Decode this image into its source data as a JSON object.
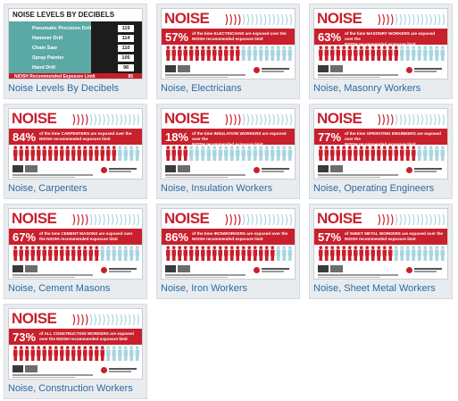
{
  "cards": [
    {
      "caption": "Noise Levels By Decibels",
      "type": "decibels"
    },
    {
      "caption": "Noise, Electricians",
      "pct": "57%",
      "line1": "of the time ELECTRICIANS are exposed over the",
      "line2": "NIOSH recommended exposure limit",
      "filled": 57
    },
    {
      "caption": "Noise, Masonry Workers",
      "pct": "63%",
      "line1": "of the time MASONRY WORKERS are exposed over the",
      "line2": "NIOSH recommended exposure limit",
      "filled": 63
    },
    {
      "caption": "Noise, Carpenters",
      "pct": "84%",
      "line1": "of the time CARPENTERS are exposed over the",
      "line2": "NIOSH recommended exposure limit",
      "filled": 84
    },
    {
      "caption": "Noise, Insulation Workers",
      "pct": "18%",
      "line1": "of the time INSULATION WORKERS are exposed over the",
      "line2": "NIOSH recommended exposure limit",
      "filled": 18
    },
    {
      "caption": "Noise, Operating Engineers",
      "pct": "77%",
      "line1": "of the time OPERATING ENGINEERS are exposed over the",
      "line2": "NIOSH recommended exposure limit",
      "filled": 77
    },
    {
      "caption": "Noise, Cement Masons",
      "pct": "67%",
      "line1": "of the time CEMENT MASONS are exposed over",
      "line2": "the NIOSH recommended exposure limit",
      "filled": 67
    },
    {
      "caption": "Noise, Iron Workers",
      "pct": "86%",
      "line1": "of the time IRONWORKERS are exposed over the",
      "line2": "NIOSH recommended exposure limit",
      "filled": 86
    },
    {
      "caption": "Noise, Sheet Metal Workers",
      "pct": "57%",
      "line1": "of SHEET METAL WORKERS are exposed over the",
      "line2": "NIOSH recommended exposure limit",
      "filled": 57
    },
    {
      "caption": "Noise, Construction Workers",
      "pct": "73%",
      "line1": "of ALL CONSTRUCTION WORKERS are exposed",
      "line2": "over the NIOSH recommended exposure limit",
      "filled": 73
    }
  ],
  "poster": {
    "word": "NOISE"
  },
  "decibels": {
    "title": "NOISE LEVELS BY DECIBELS",
    "rows": [
      {
        "label": "Pneumatic Precision Drill",
        "value": "119"
      },
      {
        "label": "Hammer Drill",
        "value": "114"
      },
      {
        "label": "Chain Saw",
        "value": "110"
      },
      {
        "label": "Spray Painter",
        "value": "105"
      },
      {
        "label": "Hand Drill",
        "value": "98"
      }
    ],
    "limit": "NIOSH Recommended Exposure Limit",
    "limit_value": "85"
  },
  "colors": {
    "red": "#c8202d",
    "teal": "#5aa9a4",
    "blue_person": "#a9d5e0",
    "caption": "#2c6aa0"
  }
}
